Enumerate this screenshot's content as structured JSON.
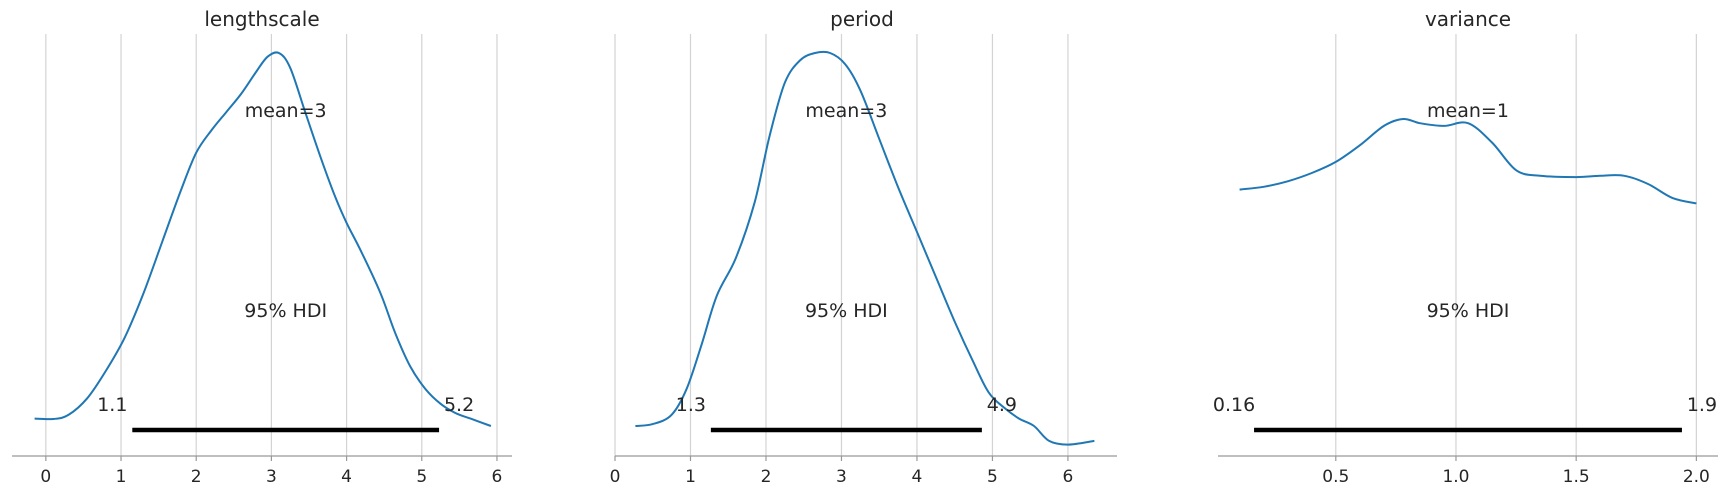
{
  "chart_data": [
    {
      "type": "line",
      "title": "lengthscale",
      "xlabel": "",
      "ylabel": "",
      "xlim": [
        -0.45,
        6.2
      ],
      "xticks": [
        0,
        1,
        2,
        3,
        4,
        5,
        6
      ],
      "grid": "vertical",
      "line_color": "#1f77b4",
      "series": [
        {
          "x": [
            -0.15,
            0.1,
            0.3,
            0.55,
            0.8,
            1.05,
            1.3,
            1.55,
            1.8,
            2.0,
            2.2,
            2.4,
            2.6,
            2.8,
            2.95,
            3.1,
            3.25,
            3.45,
            3.65,
            3.85,
            4.0,
            4.2,
            4.45,
            4.65,
            4.85,
            5.05,
            5.25,
            5.45,
            5.65,
            5.92
          ],
          "y": [
            0.02,
            0.019,
            0.03,
            0.075,
            0.15,
            0.24,
            0.36,
            0.5,
            0.64,
            0.74,
            0.8,
            0.85,
            0.9,
            0.96,
            1.0,
            1.01,
            0.97,
            0.85,
            0.73,
            0.62,
            0.55,
            0.47,
            0.36,
            0.25,
            0.16,
            0.1,
            0.06,
            0.035,
            0.02,
            0.0
          ]
        }
      ],
      "mean_label": "mean=3",
      "hdi_label": "95% HDI",
      "hdi": [
        1.15,
        5.23
      ],
      "hdi_low_label": "1.1",
      "hdi_high_label": "5.2"
    },
    {
      "type": "line",
      "title": "period",
      "xlabel": "",
      "ylabel": "",
      "xlim": [
        0,
        6.65
      ],
      "xticks": [
        0,
        1,
        2,
        3,
        4,
        5,
        6
      ],
      "grid": "vertical",
      "line_color": "#1f77b4",
      "series": [
        {
          "x": [
            0.27,
            0.5,
            0.75,
            0.95,
            1.15,
            1.35,
            1.6,
            1.85,
            2.05,
            2.25,
            2.45,
            2.65,
            2.85,
            3.05,
            3.25,
            3.5,
            3.75,
            4.0,
            4.25,
            4.5,
            4.75,
            4.95,
            5.15,
            5.35,
            5.55,
            5.75,
            6.0,
            6.35
          ],
          "y": [
            0.0,
            0.005,
            0.03,
            0.1,
            0.22,
            0.35,
            0.45,
            0.6,
            0.78,
            0.92,
            0.98,
            1.0,
            1.0,
            0.97,
            0.9,
            0.77,
            0.64,
            0.52,
            0.4,
            0.28,
            0.17,
            0.09,
            0.05,
            0.02,
            0.0,
            -0.04,
            -0.05,
            -0.04
          ]
        }
      ],
      "mean_label": "mean=3",
      "hdi_label": "95% HDI",
      "hdi": [
        1.27,
        4.86
      ],
      "hdi_low_label": "1.3",
      "hdi_high_label": "4.9"
    },
    {
      "type": "line",
      "title": "variance",
      "xlabel": "",
      "ylabel": "",
      "xlim": [
        0.01,
        2.09
      ],
      "xticks": [
        0.5,
        1.0,
        1.5,
        2.0
      ],
      "grid": "vertical",
      "line_color": "#1f77b4",
      "series": [
        {
          "x": [
            0.1,
            0.2,
            0.3,
            0.4,
            0.5,
            0.6,
            0.7,
            0.78,
            0.85,
            0.95,
            1.05,
            1.15,
            1.25,
            1.35,
            1.5,
            1.6,
            1.7,
            1.8,
            1.9,
            2.0
          ],
          "y": [
            0.89,
            0.9,
            0.92,
            0.95,
            0.99,
            1.05,
            1.12,
            1.145,
            1.13,
            1.12,
            1.13,
            1.06,
            0.96,
            0.94,
            0.935,
            0.94,
            0.94,
            0.91,
            0.86,
            0.84
          ]
        }
      ],
      "mean_label": "mean=1",
      "hdi_label": "95% HDI",
      "hdi": [
        0.16,
        1.94
      ],
      "hdi_low_label": "0.16",
      "hdi_high_label": "1.9"
    }
  ]
}
